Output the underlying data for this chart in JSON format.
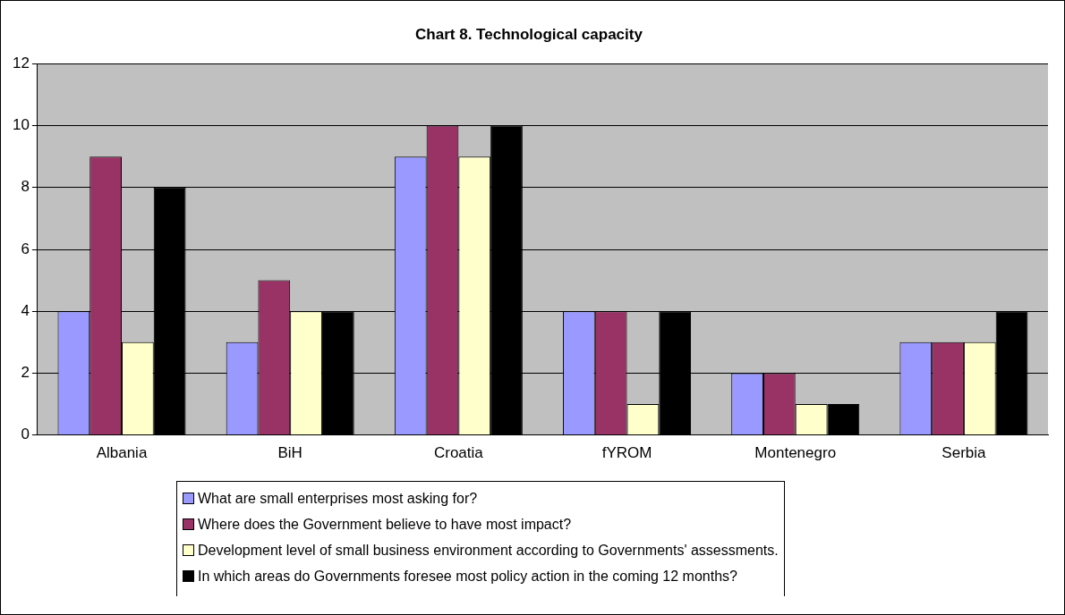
{
  "chart_data": {
    "type": "bar",
    "title": "Chart 8. Technological capacity",
    "categories": [
      "Albania",
      "BiH",
      "Croatia",
      "fYROM",
      "Montenegro",
      "Serbia"
    ],
    "series": [
      {
        "name": "What are small enterprises most asking for?",
        "color": "#9999ff",
        "values": [
          4,
          3,
          9,
          4,
          2,
          3
        ]
      },
      {
        "name": "Where does the Government believe to have most impact?",
        "color": "#993366",
        "values": [
          9,
          5,
          10,
          4,
          2,
          3
        ]
      },
      {
        "name": "Development level of small business environment according to Governments' assessments.",
        "color": "#ffffcc",
        "values": [
          3,
          4,
          9,
          1,
          1,
          3
        ]
      },
      {
        "name": "In which areas do Governments foresee most policy action in the coming 12 months?",
        "color": "#000000",
        "values": [
          8,
          4,
          10,
          4,
          1,
          4
        ]
      }
    ],
    "ylim": [
      0,
      12
    ],
    "yticks": [
      0,
      2,
      4,
      6,
      8,
      10,
      12
    ],
    "grid": "y",
    "legend": "bottom"
  }
}
